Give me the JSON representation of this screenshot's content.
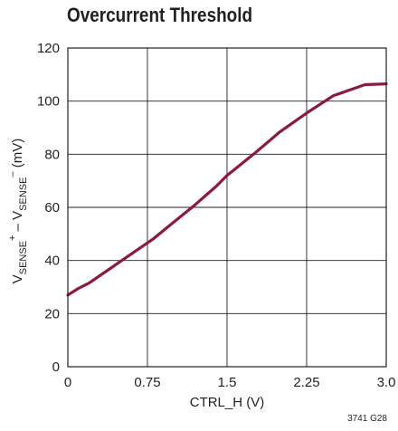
{
  "chart_data": {
    "type": "line",
    "title": "Overcurrent Threshold",
    "xlabel": "CTRL_H (V)",
    "ylabel": {
      "parts": [
        {
          "text": "V",
          "style": "normal"
        },
        {
          "text": "SENSE",
          "style": "sub"
        },
        {
          "text": "+",
          "style": "sup"
        },
        {
          "text": " – V",
          "style": "normal"
        },
        {
          "text": "SENSE",
          "style": "sub"
        },
        {
          "text": "–",
          "style": "sup"
        },
        {
          "text": " (mV)",
          "style": "normal"
        }
      ]
    },
    "xlim": [
      0,
      3.0
    ],
    "ylim": [
      0,
      120
    ],
    "xticks": [
      0,
      0.75,
      1.5,
      2.25,
      3.0
    ],
    "xtick_labels": [
      "0",
      "0.75",
      "1.5",
      "2.25",
      "3.0"
    ],
    "yticks": [
      0,
      20,
      40,
      60,
      80,
      100,
      120
    ],
    "ytick_labels": [
      "0",
      "20",
      "40",
      "60",
      "80",
      "100",
      "120"
    ],
    "grid": true,
    "series": [
      {
        "color": "#8b1a3c",
        "x": [
          0,
          0.1,
          0.2,
          0.4,
          0.6,
          0.8,
          1.0,
          1.2,
          1.4,
          1.5,
          1.75,
          2.0,
          2.25,
          2.5,
          2.8,
          3.0
        ],
        "y": [
          27,
          29.5,
          31.5,
          37,
          42.5,
          48,
          54.5,
          61,
          68,
          72,
          80,
          88.5,
          95.5,
          102,
          106.2,
          106.5
        ]
      }
    ],
    "figure_id": "3741 G28"
  }
}
